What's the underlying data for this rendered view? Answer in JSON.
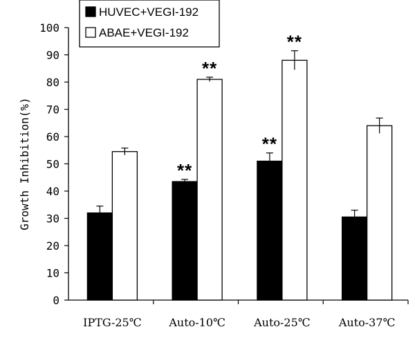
{
  "chart_data": {
    "type": "bar",
    "categories": [
      "IPTG-25℃",
      "Auto-10℃",
      "Auto-25℃",
      "Auto-37℃"
    ],
    "series": [
      {
        "name": "HUVEC+VEGI-192",
        "color": "#000000",
        "values": [
          32,
          43.5,
          51,
          30.5
        ],
        "errors": [
          2.5,
          0.8,
          3,
          2.5
        ]
      },
      {
        "name": "ABAE+VEGI-192",
        "color": "#ffffff",
        "values": [
          54.5,
          81,
          88,
          64
        ],
        "errors": [
          1.3,
          0.8,
          3.5,
          2.8
        ]
      }
    ],
    "annotations": [
      "",
      "**",
      "**",
      ""
    ],
    "annotations_series2": [
      "",
      "**",
      "**",
      ""
    ],
    "ylabel": "Growth Inhibition(%)",
    "xlabel": "",
    "ylim": [
      0,
      100
    ],
    "yticks": [
      0,
      10,
      20,
      30,
      40,
      50,
      60,
      70,
      80,
      90,
      100
    ],
    "legend": {
      "placement": "top-left"
    },
    "grid": false
  }
}
